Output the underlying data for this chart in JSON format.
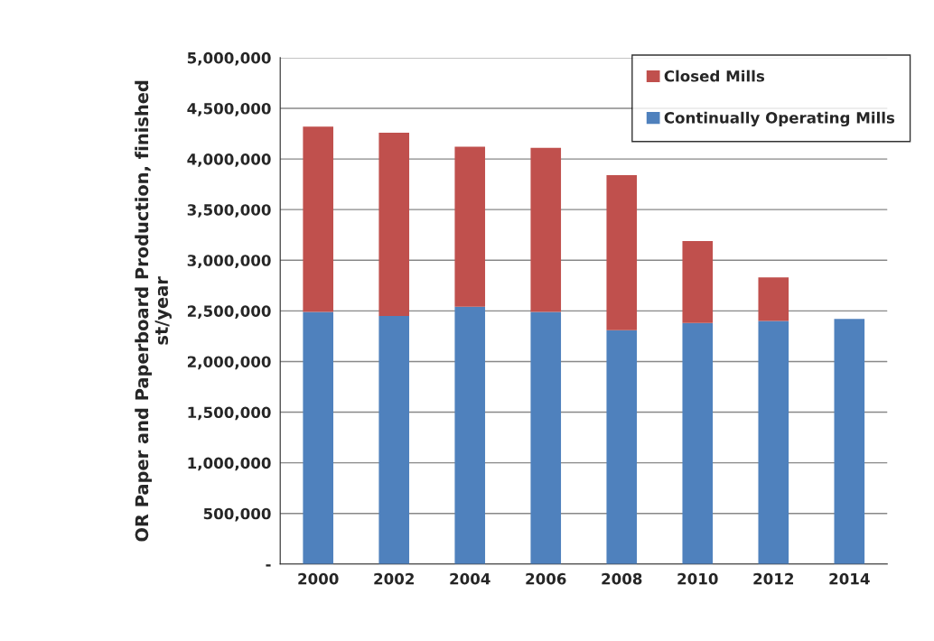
{
  "chart_data": {
    "type": "bar",
    "stacked": true,
    "ylabel": "OR Paper and Paperboard Production, finished\nst/year",
    "categories": [
      "2000",
      "2002",
      "2004",
      "2006",
      "2008",
      "2010",
      "2012",
      "2014"
    ],
    "series": [
      {
        "name": "Continually Operating Mills",
        "color": "#4f81bd",
        "values": [
          2490000,
          2450000,
          2540000,
          2490000,
          2310000,
          2380000,
          2400000,
          2420000
        ]
      },
      {
        "name": "Closed Mills",
        "color": "#c0504d",
        "values": [
          1830000,
          1810000,
          1580000,
          1620000,
          1530000,
          810000,
          430000,
          null
        ]
      }
    ],
    "ylim": [
      0,
      5000000
    ],
    "yticks": [
      {
        "value": 0,
        "label": "-"
      },
      {
        "value": 500000,
        "label": "500,000"
      },
      {
        "value": 1000000,
        "label": "1,000,000"
      },
      {
        "value": 1500000,
        "label": "1,500,000"
      },
      {
        "value": 2000000,
        "label": "2,000,000"
      },
      {
        "value": 2500000,
        "label": "2,500,000"
      },
      {
        "value": 3000000,
        "label": "3,000,000"
      },
      {
        "value": 3500000,
        "label": "3,500,000"
      },
      {
        "value": 4000000,
        "label": "4,000,000"
      },
      {
        "value": 4500000,
        "label": "4,500,000"
      },
      {
        "value": 5000000,
        "label": "5,000,000"
      }
    ],
    "grid": "y",
    "legend": "top right"
  }
}
